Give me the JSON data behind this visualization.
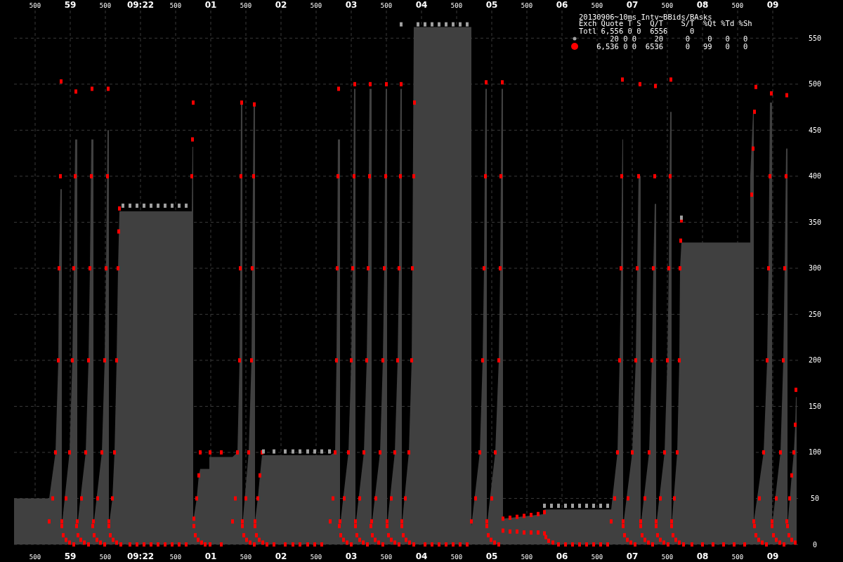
{
  "chart_data": {
    "type": "area",
    "title": "20130906~10ms Intv~BBids/BAsks",
    "annotations": [
      "Exch Quote T S  Q/T    S/T  %Qt %Td %Sh",
      "Totl 6,556 0 0  6556     0",
      "       20 0 0    20     0    0   0   0",
      "    6,536 0 0  6536     0   99   0   0"
    ],
    "xlim": [
      "2013-09-06T09:21:58.20",
      "2013-09-06T09:22:09.40"
    ],
    "xticks": [
      {
        "value": "2013-09-06T09:21:58.50",
        "label": "500"
      },
      {
        "value": "2013-09-06T09:21:59.00",
        "label": "59"
      },
      {
        "value": "2013-09-06T09:21:59.50",
        "label": "500"
      },
      {
        "value": "2013-09-06T09:22:00.00",
        "label": "09:22"
      },
      {
        "value": "2013-09-06T09:22:00.50",
        "label": "500"
      },
      {
        "value": "2013-09-06T09:22:01.00",
        "label": "01"
      },
      {
        "value": "2013-09-06T09:22:01.50",
        "label": "500"
      },
      {
        "value": "2013-09-06T09:22:02.00",
        "label": "02"
      },
      {
        "value": "2013-09-06T09:22:02.50",
        "label": "500"
      },
      {
        "value": "2013-09-06T09:22:03.00",
        "label": "03"
      },
      {
        "value": "2013-09-06T09:22:03.50",
        "label": "500"
      },
      {
        "value": "2013-09-06T09:22:04.00",
        "label": "04"
      },
      {
        "value": "2013-09-06T09:22:04.50",
        "label": "500"
      },
      {
        "value": "2013-09-06T09:22:05.00",
        "label": "05"
      },
      {
        "value": "2013-09-06T09:22:05.50",
        "label": "500"
      },
      {
        "value": "2013-09-06T09:22:06.00",
        "label": "06"
      },
      {
        "value": "2013-09-06T09:22:06.50",
        "label": "500"
      },
      {
        "value": "2013-09-06T09:22:07.00",
        "label": "07"
      },
      {
        "value": "2013-09-06T09:22:07.50",
        "label": "500"
      },
      {
        "value": "2013-09-06T09:22:08.00",
        "label": "08"
      },
      {
        "value": "2013-09-06T09:22:08.50",
        "label": "500"
      },
      {
        "value": "2013-09-06T09:22:09.00",
        "label": "09"
      }
    ],
    "x2lim": [
      "2013-09-06T09:21:58.20",
      "2013-09-06T09:22:09.40"
    ],
    "x2ticks": [
      {
        "value": "2013-09-06T09:21:58.50",
        "label": "500"
      },
      {
        "value": "2013-09-06T09:21:59.00",
        "label": "59"
      },
      {
        "value": "2013-09-06T09:21:59.50",
        "label": "500"
      },
      {
        "value": "2013-09-06T09:22:00.00",
        "label": "09:22"
      },
      {
        "value": "2013-09-06T09:22:00.50",
        "label": "500"
      },
      {
        "value": "2013-09-06T09:22:01.00",
        "label": "01"
      },
      {
        "value": "2013-09-06T09:22:01.50",
        "label": "500"
      },
      {
        "value": "2013-09-06T09:22:02.00",
        "label": "02"
      },
      {
        "value": "2013-09-06T09:22:02.50",
        "label": "500"
      },
      {
        "value": "2013-09-06T09:22:03.00",
        "label": "03"
      },
      {
        "value": "2013-09-06T09:22:03.50",
        "label": "500"
      },
      {
        "value": "2013-09-06T09:22:04.00",
        "label": "04"
      },
      {
        "value": "2013-09-06T09:22:04.50",
        "label": "500"
      },
      {
        "value": "2013-09-06T09:22:05.00",
        "label": "05"
      },
      {
        "value": "2013-09-06T09:22:05.50",
        "label": "500"
      },
      {
        "value": "2013-09-06T09:22:06.00",
        "label": "06"
      },
      {
        "value": "2013-09-06T09:22:06.50",
        "label": "500"
      },
      {
        "value": "2013-09-06T09:22:07.00",
        "label": "07"
      },
      {
        "value": "2013-09-06T09:22:07.50",
        "label": "500"
      },
      {
        "value": "2013-09-06T09:22:08.00",
        "label": "08"
      },
      {
        "value": "2013-09-06T09:22:08.50",
        "label": "500"
      },
      {
        "value": "2013-09-06T09:22:09.00",
        "label": "09"
      }
    ],
    "ylim": [
      0,
      580
    ],
    "yticks": [
      0,
      50,
      100,
      150,
      200,
      250,
      300,
      350,
      400,
      450,
      500,
      550
    ],
    "grid": true,
    "series": [
      {
        "color": "#404040",
        "x": [
          "2013-09-06T09:21:58.20",
          "2013-09-06T09:21:58.70",
          "2013-09-06T09:21:58.79",
          "2013-09-06T09:21:58.83",
          "2013-09-06T09:21:58.84",
          "2013-09-06T09:21:58.86",
          "2013-09-06T09:21:58.88",
          "2013-09-06T09:21:58.88",
          "2013-09-06T09:21:58.99",
          "2013-09-06T09:21:59.03",
          "2013-09-06T09:21:59.05",
          "2013-09-06T09:21:59.07",
          "2013-09-06T09:21:59.10",
          "2013-09-06T09:21:59.10",
          "2013-09-06T09:21:59.22",
          "2013-09-06T09:21:59.26",
          "2013-09-06T09:21:59.28",
          "2013-09-06T09:21:59.30",
          "2013-09-06T09:21:59.33",
          "2013-09-06T09:21:59.33",
          "2013-09-06T09:21:59.45",
          "2013-09-06T09:21:59.49",
          "2013-09-06T09:21:59.51",
          "2013-09-06T09:21:59.53",
          "2013-09-06T09:21:59.55",
          "2013-09-06T09:21:59.55",
          "2013-09-06T09:21:59.60",
          "2013-09-06T09:21:59.63",
          "2013-09-06T09:21:59.66",
          "2013-09-06T09:21:59.68",
          "2013-09-06T09:21:59.70",
          "2013-09-06T09:22:00.73",
          "2013-09-06T09:22:00.74",
          "2013-09-06T09:22:00.75",
          "2013-09-06T09:22:00.75",
          "2013-09-06T09:22:00.80",
          "2013-09-06T09:22:00.83",
          "2013-09-06T09:22:00.85",
          "2013-09-06T09:22:00.98",
          "2013-09-06T09:22:00.98",
          "2013-09-06T09:22:01.31",
          "2013-09-06T09:22:01.38",
          "2013-09-06T09:22:01.41",
          "2013-09-06T09:22:01.42",
          "2013-09-06T09:22:01.43",
          "2013-09-06T09:22:01.45",
          "2013-09-06T09:22:01.45",
          "2013-09-06T09:22:01.54",
          "2013-09-06T09:22:01.58",
          "2013-09-06T09:22:01.59",
          "2013-09-06T09:22:01.61",
          "2013-09-06T09:22:01.63",
          "2013-09-06T09:22:01.63",
          "2013-09-06T09:22:01.67",
          "2013-09-06T09:22:01.70",
          "2013-09-06T09:22:01.73",
          "2013-09-06T09:22:02.70",
          "2013-09-06T09:22:02.77",
          "2013-09-06T09:22:02.79",
          "2013-09-06T09:22:02.80",
          "2013-09-06T09:22:02.81",
          "2013-09-06T09:22:02.84",
          "2013-09-06T09:22:02.84",
          "2013-09-06T09:22:02.96",
          "2013-09-06T09:22:03.00",
          "2013-09-06T09:22:03.02",
          "2013-09-06T09:22:03.04",
          "2013-09-06T09:22:03.06",
          "2013-09-06T09:22:03.06",
          "2013-09-06T09:22:03.18",
          "2013-09-06T09:22:03.22",
          "2013-09-06T09:22:03.24",
          "2013-09-06T09:22:03.26",
          "2013-09-06T09:22:03.29",
          "2013-09-06T09:22:03.29",
          "2013-09-06T09:22:03.41",
          "2013-09-06T09:22:03.45",
          "2013-09-06T09:22:03.47",
          "2013-09-06T09:22:03.49",
          "2013-09-06T09:22:03.51",
          "2013-09-06T09:22:03.51",
          "2013-09-06T09:22:03.62",
          "2013-09-06T09:22:03.66",
          "2013-09-06T09:22:03.68",
          "2013-09-06T09:22:03.70",
          "2013-09-06T09:22:03.72",
          "2013-09-06T09:22:03.72",
          "2013-09-06T09:22:03.82",
          "2013-09-06T09:22:03.86",
          "2013-09-06T09:22:03.87",
          "2013-09-06T09:22:03.89",
          "2013-09-06T09:22:04.71",
          "2013-09-06T09:22:04.71",
          "2013-09-06T09:22:04.83",
          "2013-09-06T09:22:04.87",
          "2013-09-06T09:22:04.89",
          "2013-09-06T09:22:04.91",
          "2013-09-06T09:22:04.93",
          "2013-09-06T09:22:04.93",
          "2013-09-06T09:22:05.05",
          "2013-09-06T09:22:05.10",
          "2013-09-06T09:22:05.12",
          "2013-09-06T09:22:05.14",
          "2013-09-06T09:22:05.16",
          "2013-09-06T09:22:05.16",
          "2013-09-06T09:22:05.75",
          "2013-09-06T09:22:05.75",
          "2013-09-06T09:22:06.70",
          "2013-09-06T09:22:06.79",
          "2013-09-06T09:22:06.82",
          "2013-09-06T09:22:06.84",
          "2013-09-06T09:22:06.86",
          "2013-09-06T09:22:06.87",
          "2013-09-06T09:22:06.87",
          "2013-09-06T09:22:07.00",
          "2013-09-06T09:22:07.05",
          "2013-09-06T09:22:07.07",
          "2013-09-06T09:22:07.09",
          "2013-09-06T09:22:07.12",
          "2013-09-06T09:22:07.12",
          "2013-09-06T09:22:07.24",
          "2013-09-06T09:22:07.28",
          "2013-09-06T09:22:07.30",
          "2013-09-06T09:22:07.32",
          "2013-09-06T09:22:07.34",
          "2013-09-06T09:22:07.34",
          "2013-09-06T09:22:07.46",
          "2013-09-06T09:22:07.50",
          "2013-09-06T09:22:07.52",
          "2013-09-06T09:22:07.54",
          "2013-09-06T09:22:07.56",
          "2013-09-06T09:22:07.56",
          "2013-09-06T09:22:07.64",
          "2013-09-06T09:22:07.67",
          "2013-09-06T09:22:07.68",
          "2013-09-06T09:22:07.70",
          "2013-09-06T09:22:08.68",
          "2013-09-06T09:22:08.68",
          "2013-09-06T09:22:08.72",
          "2013-09-06T09:22:08.73",
          "2013-09-06T09:22:08.73",
          "2013-09-06T09:22:08.87",
          "2013-09-06T09:22:08.92",
          "2013-09-06T09:22:08.94",
          "2013-09-06T09:22:08.96",
          "2013-09-06T09:22:08.99",
          "2013-09-06T09:22:08.99",
          "2013-09-06T09:22:09.11",
          "2013-09-06T09:22:09.15",
          "2013-09-06T09:22:09.17",
          "2013-09-06T09:22:09.19",
          "2013-09-06T09:22:09.21",
          "2013-09-06T09:22:09.21",
          "2013-09-06T09:22:09.27",
          "2013-09-06T09:22:09.30",
          "2013-09-06T09:22:09.32",
          "2013-09-06T09:22:09.33",
          "2013-09-06T09:22:09.34",
          "2013-09-06T09:22:09.34"
        ],
        "values": [
          50,
          50,
          100,
          200,
          300,
          386,
          386,
          20,
          100,
          200,
          300,
          440,
          440,
          20,
          100,
          200,
          300,
          440,
          440,
          20,
          100,
          200,
          300,
          450,
          450,
          20,
          50,
          100,
          200,
          300,
          362,
          362,
          432,
          432,
          25,
          50,
          75,
          82,
          82,
          95,
          95,
          100,
          200,
          300,
          478,
          478,
          20,
          100,
          200,
          300,
          478,
          478,
          25,
          50,
          75,
          97,
          97,
          100,
          200,
          300,
          440,
          440,
          20,
          100,
          200,
          300,
          495,
          495,
          20,
          100,
          200,
          300,
          495,
          495,
          20,
          100,
          200,
          300,
          495,
          495,
          20,
          100,
          200,
          300,
          495,
          495,
          20,
          100,
          200,
          300,
          562,
          562,
          20,
          100,
          200,
          300,
          495,
          495,
          20,
          100,
          200,
          300,
          495,
          495,
          28,
          33,
          38,
          38,
          100,
          200,
          300,
          440,
          440,
          20,
          100,
          200,
          300,
          400,
          400,
          20,
          100,
          200,
          300,
          370,
          370,
          20,
          100,
          200,
          300,
          470,
          470,
          20,
          100,
          200,
          300,
          328,
          328,
          400,
          470,
          470,
          25,
          100,
          200,
          300,
          480,
          480,
          20,
          100,
          200,
          300,
          430,
          430,
          20,
          75,
          100,
          130,
          160,
          160,
          0
        ]
      },
      {
        "type": "scatter",
        "color": "#ff0000",
        "marker": "square",
        "x": [
          "2013-09-06T09:21:58.70",
          "2013-09-06T09:21:58.75",
          "2013-09-06T09:21:58.79",
          "2013-09-06T09:21:58.83",
          "2013-09-06T09:21:58.84",
          "2013-09-06T09:21:58.86",
          "2013-09-06T09:21:58.87",
          "2013-09-06T09:21:58.88",
          "2013-09-06T09:21:58.90",
          "2013-09-06T09:21:58.94",
          "2013-09-06T09:21:58.99",
          "2013-09-06T09:21:59.05",
          "2013-09-06T09:21:58.88",
          "2013-09-06T09:21:58.94",
          "2013-09-06T09:21:58.99",
          "2013-09-06T09:21:59.03",
          "2013-09-06T09:21:59.05",
          "2013-09-06T09:21:59.07",
          "2013-09-06T09:21:59.08",
          "2013-09-06T09:21:59.09",
          "2013-09-06T09:21:59.11",
          "2013-09-06T09:21:59.15",
          "2013-09-06T09:21:59.20",
          "2013-09-06T09:21:59.26",
          "2013-09-06T09:21:59.10",
          "2013-09-06T09:21:59.16",
          "2013-09-06T09:21:59.22",
          "2013-09-06T09:21:59.26",
          "2013-09-06T09:21:59.28",
          "2013-09-06T09:21:59.30",
          "2013-09-06T09:21:59.31",
          "2013-09-06T09:21:59.32",
          "2013-09-06T09:21:59.34",
          "2013-09-06T09:21:59.38",
          "2013-09-06T09:21:59.43",
          "2013-09-06T09:21:59.49",
          "2013-09-06T09:21:59.33",
          "2013-09-06T09:21:59.39",
          "2013-09-06T09:21:59.45",
          "2013-09-06T09:21:59.49",
          "2013-09-06T09:21:59.51",
          "2013-09-06T09:21:59.53",
          "2013-09-06T09:21:59.54",
          "2013-09-06T09:21:59.55",
          "2013-09-06T09:21:59.57",
          "2013-09-06T09:21:59.61",
          "2013-09-06T09:21:59.66",
          "2013-09-06T09:21:59.72",
          "2013-09-06T09:21:59.55",
          "2013-09-06T09:21:59.60",
          "2013-09-06T09:21:59.63",
          "2013-09-06T09:21:59.66",
          "2013-09-06T09:21:59.68",
          "2013-09-06T09:21:59.69",
          "2013-09-06T09:21:59.70",
          "2013-09-06T09:21:59.85",
          "2013-09-06T09:21:59.95",
          "2013-09-06T09:22:00.05",
          "2013-09-06T09:22:00.15",
          "2013-09-06T09:22:00.25",
          "2013-09-06T09:22:00.35",
          "2013-09-06T09:22:00.45",
          "2013-09-06T09:22:00.55",
          "2013-09-06T09:22:00.65",
          "2013-09-06T09:22:00.73",
          "2013-09-06T09:22:00.74",
          "2013-09-06T09:22:00.75",
          "2013-09-06T09:22:00.76",
          "2013-09-06T09:22:00.80",
          "2013-09-06T09:22:00.83",
          "2013-09-06T09:22:00.85",
          "2013-09-06T09:22:00.76",
          "2013-09-06T09:22:00.78",
          "2013-09-06T09:22:00.82",
          "2013-09-06T09:22:00.87",
          "2013-09-06T09:22:00.92",
          "2013-09-06T09:22:00.99",
          "2013-09-06T09:22:01.15",
          "2013-09-06T09:22:00.99",
          "2013-09-06T09:22:01.15",
          "2013-09-06T09:22:01.31",
          "2013-09-06T09:22:01.35",
          "2013-09-06T09:22:01.38",
          "2013-09-06T09:22:01.41",
          "2013-09-06T09:22:01.42",
          "2013-09-06T09:22:01.43",
          "2013-09-06T09:22:01.44",
          "2013-09-06T09:22:01.45",
          "2013-09-06T09:22:01.47",
          "2013-09-06T09:22:01.51",
          "2013-09-06T09:22:01.56",
          "2013-09-06T09:22:01.62",
          "2013-09-06T09:22:01.45",
          "2013-09-06T09:22:01.50",
          "2013-09-06T09:22:01.54",
          "2013-09-06T09:22:01.58",
          "2013-09-06T09:22:01.59",
          "2013-09-06T09:22:01.61",
          "2013-09-06T09:22:01.62",
          "2013-09-06T09:22:01.63",
          "2013-09-06T09:22:01.65",
          "2013-09-06T09:22:01.69",
          "2013-09-06T09:22:01.74",
          "2013-09-06T09:22:01.80",
          "2013-09-06T09:22:01.63",
          "2013-09-06T09:22:01.67",
          "2013-09-06T09:22:01.70",
          "2013-09-06T09:22:01.73",
          "2013-09-06T09:22:01.90",
          "2013-09-06T09:22:02.06",
          "2013-09-06T09:22:02.17",
          "2013-09-06T09:22:02.27",
          "2013-09-06T09:22:02.38",
          "2013-09-06T09:22:02.48",
          "2013-09-06T09:22:02.58",
          "2013-09-06T09:22:02.70",
          "2013-09-06T09:22:02.74",
          "2013-09-06T09:22:02.77",
          "2013-09-06T09:22:02.79",
          "2013-09-06T09:22:02.80",
          "2013-09-06T09:22:02.81",
          "2013-09-06T09:22:02.82",
          "2013-09-06T09:22:02.83",
          "2013-09-06T09:22:02.85",
          "2013-09-06T09:22:02.89",
          "2013-09-06T09:22:02.94",
          "2013-09-06T09:22:03.00",
          "2013-09-06T09:22:02.84",
          "2013-09-06T09:22:02.90",
          "2013-09-06T09:22:02.96",
          "2013-09-06T09:22:03.00",
          "2013-09-06T09:22:03.02",
          "2013-09-06T09:22:03.04",
          "2013-09-06T09:22:03.05",
          "2013-09-06T09:22:03.06",
          "2013-09-06T09:22:03.08",
          "2013-09-06T09:22:03.12",
          "2013-09-06T09:22:03.17",
          "2013-09-06T09:22:03.23",
          "2013-09-06T09:22:03.06",
          "2013-09-06T09:22:03.12",
          "2013-09-06T09:22:03.18",
          "2013-09-06T09:22:03.22",
          "2013-09-06T09:22:03.24",
          "2013-09-06T09:22:03.26",
          "2013-09-06T09:22:03.27",
          "2013-09-06T09:22:03.28",
          "2013-09-06T09:22:03.30",
          "2013-09-06T09:22:03.34",
          "2013-09-06T09:22:03.39",
          "2013-09-06T09:22:03.45",
          "2013-09-06T09:22:03.29",
          "2013-09-06T09:22:03.35",
          "2013-09-06T09:22:03.41",
          "2013-09-06T09:22:03.45",
          "2013-09-06T09:22:03.47",
          "2013-09-06T09:22:03.49",
          "2013-09-06T09:22:03.50",
          "2013-09-06T09:22:03.51",
          "2013-09-06T09:22:03.53",
          "2013-09-06T09:22:03.57",
          "2013-09-06T09:22:03.62",
          "2013-09-06T09:22:03.68",
          "2013-09-06T09:22:03.51",
          "2013-09-06T09:22:03.57",
          "2013-09-06T09:22:03.62",
          "2013-09-06T09:22:03.66",
          "2013-09-06T09:22:03.68",
          "2013-09-06T09:22:03.70",
          "2013-09-06T09:22:03.71",
          "2013-09-06T09:22:03.72",
          "2013-09-06T09:22:03.74",
          "2013-09-06T09:22:03.78",
          "2013-09-06T09:22:03.83",
          "2013-09-06T09:22:03.89",
          "2013-09-06T09:22:03.72",
          "2013-09-06T09:22:03.77",
          "2013-09-06T09:22:03.82",
          "2013-09-06T09:22:03.86",
          "2013-09-06T09:22:03.87",
          "2013-09-06T09:22:03.89",
          "2013-09-06T09:22:03.90",
          "2013-09-06T09:22:04.05",
          "2013-09-06T09:22:04.15",
          "2013-09-06T09:22:04.25",
          "2013-09-06T09:22:04.35",
          "2013-09-06T09:22:04.45",
          "2013-09-06T09:22:04.55",
          "2013-09-06T09:22:04.65",
          "2013-09-06T09:22:04.71",
          "2013-09-06T09:22:04.77",
          "2013-09-06T09:22:04.83",
          "2013-09-06T09:22:04.87",
          "2013-09-06T09:22:04.89",
          "2013-09-06T09:22:04.91",
          "2013-09-06T09:22:04.92",
          "2013-09-06T09:22:04.93",
          "2013-09-06T09:22:04.95",
          "2013-09-06T09:22:04.99",
          "2013-09-06T09:22:05.04",
          "2013-09-06T09:22:05.10",
          "2013-09-06T09:22:04.93",
          "2013-09-06T09:22:05.00",
          "2013-09-06T09:22:05.05",
          "2013-09-06T09:22:05.10",
          "2013-09-06T09:22:05.12",
          "2013-09-06T09:22:05.13",
          "2013-09-06T09:22:05.15",
          "2013-09-06T09:22:05.16",
          "2013-09-06T09:22:05.26",
          "2013-09-06T09:22:05.36",
          "2013-09-06T09:22:05.46",
          "2013-09-06T09:22:05.56",
          "2013-09-06T09:22:05.66",
          "2013-09-06T09:22:05.75",
          "2013-09-06T09:22:05.16",
          "2013-09-06T09:22:05.26",
          "2013-09-06T09:22:05.36",
          "2013-09-06T09:22:05.46",
          "2013-09-06T09:22:05.56",
          "2013-09-06T09:22:05.66",
          "2013-09-06T09:22:05.75",
          "2013-09-06T09:22:05.77",
          "2013-09-06T09:22:05.81",
          "2013-09-06T09:22:05.87",
          "2013-09-06T09:22:05.95",
          "2013-09-06T09:22:06.05",
          "2013-09-06T09:22:06.15",
          "2013-09-06T09:22:06.25",
          "2013-09-06T09:22:06.35",
          "2013-09-06T09:22:06.45",
          "2013-09-06T09:22:06.55",
          "2013-09-06T09:22:06.65",
          "2013-09-06T09:22:06.70",
          "2013-09-06T09:22:06.75",
          "2013-09-06T09:22:06.79",
          "2013-09-06T09:22:06.82",
          "2013-09-06T09:22:06.84",
          "2013-09-06T09:22:06.85",
          "2013-09-06T09:22:06.86",
          "2013-09-06T09:22:06.87",
          "2013-09-06T09:22:06.89",
          "2013-09-06T09:22:06.93",
          "2013-09-06T09:22:06.98",
          "2013-09-06T09:22:07.04",
          "2013-09-06T09:22:06.87",
          "2013-09-06T09:22:06.94",
          "2013-09-06T09:22:07.00",
          "2013-09-06T09:22:07.05",
          "2013-09-06T09:22:07.07",
          "2013-09-06T09:22:07.09",
          "2013-09-06T09:22:07.11",
          "2013-09-06T09:22:07.12",
          "2013-09-06T09:22:07.14",
          "2013-09-06T09:22:07.18",
          "2013-09-06T09:22:07.23",
          "2013-09-06T09:22:07.29",
          "2013-09-06T09:22:07.12",
          "2013-09-06T09:22:07.18",
          "2013-09-06T09:22:07.24",
          "2013-09-06T09:22:07.28",
          "2013-09-06T09:22:07.30",
          "2013-09-06T09:22:07.32",
          "2013-09-06T09:22:07.33",
          "2013-09-06T09:22:07.34",
          "2013-09-06T09:22:07.36",
          "2013-09-06T09:22:07.40",
          "2013-09-06T09:22:07.45",
          "2013-09-06T09:22:07.51",
          "2013-09-06T09:22:07.34",
          "2013-09-06T09:22:07.40",
          "2013-09-06T09:22:07.46",
          "2013-09-06T09:22:07.50",
          "2013-09-06T09:22:07.52",
          "2013-09-06T09:22:07.54",
          "2013-09-06T09:22:07.55",
          "2013-09-06T09:22:07.56",
          "2013-09-06T09:22:07.58",
          "2013-09-06T09:22:07.62",
          "2013-09-06T09:22:07.67",
          "2013-09-06T09:22:07.73",
          "2013-09-06T09:22:07.56",
          "2013-09-06T09:22:07.60",
          "2013-09-06T09:22:07.64",
          "2013-09-06T09:22:07.67",
          "2013-09-06T09:22:07.68",
          "2013-09-06T09:22:07.69",
          "2013-09-06T09:22:07.70",
          "2013-09-06T09:22:07.85",
          "2013-09-06T09:22:08.00",
          "2013-09-06T09:22:08.15",
          "2013-09-06T09:22:08.30",
          "2013-09-06T09:22:08.45",
          "2013-09-06T09:22:08.60",
          "2013-09-06T09:22:08.70",
          "2013-09-06T09:22:08.72",
          "2013-09-06T09:22:08.74",
          "2013-09-06T09:22:08.76",
          "2013-09-06T09:22:08.73",
          "2013-09-06T09:22:08.81",
          "2013-09-06T09:22:08.87",
          "2013-09-06T09:22:08.92",
          "2013-09-06T09:22:08.94",
          "2013-09-06T09:22:08.96",
          "2013-09-06T09:22:08.98",
          "2013-09-06T09:22:08.74",
          "2013-09-06T09:22:08.76",
          "2013-09-06T09:22:08.80",
          "2013-09-06T09:22:08.85",
          "2013-09-06T09:22:08.91",
          "2013-09-06T09:22:08.99",
          "2013-09-06T09:22:09.01",
          "2013-09-06T09:22:09.05",
          "2013-09-06T09:22:09.10",
          "2013-09-06T09:22:09.16",
          "2013-09-06T09:22:08.99",
          "2013-09-06T09:22:09.05",
          "2013-09-06T09:22:09.11",
          "2013-09-06T09:22:09.15",
          "2013-09-06T09:22:09.17",
          "2013-09-06T09:22:09.19",
          "2013-09-06T09:22:09.20",
          "2013-09-06T09:22:09.21",
          "2013-09-06T09:22:09.23",
          "2013-09-06T09:22:09.27",
          "2013-09-06T09:22:09.32",
          "2013-09-06T09:22:09.20",
          "2013-09-06T09:22:09.24",
          "2013-09-06T09:22:09.27",
          "2013-09-06T09:22:09.30",
          "2013-09-06T09:22:09.32",
          "2013-09-06T09:22:09.33"
        ],
        "values": [
          25,
          50,
          100,
          200,
          300,
          400,
          503,
          20,
          10,
          5,
          2,
          0,
          25,
          50,
          100,
          200,
          300,
          400,
          492,
          20,
          10,
          5,
          2,
          0,
          25,
          50,
          100,
          200,
          300,
          400,
          495,
          20,
          10,
          5,
          2,
          0,
          25,
          50,
          100,
          200,
          300,
          400,
          495,
          20,
          10,
          5,
          2,
          0,
          25,
          50,
          100,
          200,
          300,
          340,
          365,
          0,
          0,
          0,
          0,
          0,
          0,
          0,
          0,
          0,
          400,
          440,
          480,
          28,
          50,
          75,
          100,
          20,
          10,
          5,
          2,
          0,
          100,
          100,
          0,
          0,
          25,
          50,
          100,
          200,
          300,
          400,
          480,
          20,
          10,
          5,
          2,
          0,
          25,
          50,
          100,
          200,
          300,
          400,
          478,
          20,
          10,
          5,
          2,
          0,
          25,
          50,
          75,
          100,
          0,
          0,
          0,
          0,
          0,
          0,
          0,
          25,
          50,
          100,
          200,
          300,
          400,
          495,
          20,
          10,
          5,
          2,
          0,
          25,
          50,
          100,
          200,
          300,
          400,
          500,
          20,
          10,
          5,
          2,
          0,
          25,
          50,
          100,
          200,
          300,
          400,
          500,
          20,
          10,
          5,
          2,
          0,
          25,
          50,
          100,
          200,
          300,
          400,
          500,
          20,
          10,
          5,
          2,
          0,
          25,
          50,
          100,
          200,
          300,
          400,
          500,
          20,
          10,
          5,
          2,
          0,
          25,
          50,
          100,
          200,
          300,
          400,
          480,
          0,
          0,
          0,
          0,
          0,
          0,
          0,
          25,
          50,
          100,
          200,
          300,
          400,
          502,
          20,
          10,
          5,
          2,
          0,
          25,
          50,
          100,
          200,
          300,
          400,
          502,
          28,
          29,
          30,
          31,
          32,
          33,
          35,
          15,
          14,
          14,
          13,
          13,
          13,
          12,
          8,
          4,
          2,
          0,
          0,
          0,
          0,
          0,
          0,
          0,
          0,
          25,
          50,
          100,
          200,
          300,
          400,
          505,
          20,
          10,
          5,
          2,
          0,
          25,
          50,
          100,
          200,
          300,
          400,
          500,
          20,
          10,
          5,
          2,
          0,
          25,
          50,
          100,
          200,
          300,
          400,
          498,
          20,
          10,
          5,
          2,
          0,
          25,
          50,
          100,
          200,
          300,
          400,
          505,
          20,
          10,
          5,
          2,
          0,
          25,
          50,
          100,
          200,
          300,
          330,
          352,
          0,
          0,
          0,
          0,
          0,
          0,
          380,
          430,
          470,
          497,
          25,
          50,
          100,
          200,
          300,
          400,
          490,
          20,
          10,
          5,
          2,
          0,
          20,
          10,
          5,
          2,
          0,
          25,
          50,
          100,
          200,
          300,
          400,
          488,
          20,
          10,
          5,
          2,
          25,
          50,
          75,
          100,
          130,
          168
        ]
      },
      {
        "type": "scatter",
        "color": "#a0a0a0",
        "marker": "square",
        "x": [
          "2013-09-06T09:21:59.75",
          "2013-09-06T09:21:59.85",
          "2013-09-06T09:21:59.95",
          "2013-09-06T09:22:00.05",
          "2013-09-06T09:22:00.15",
          "2013-09-06T09:22:00.25",
          "2013-09-06T09:22:00.35",
          "2013-09-06T09:22:00.45",
          "2013-09-06T09:22:00.55",
          "2013-09-06T09:22:00.65",
          "2013-09-06T09:22:01.75",
          "2013-09-06T09:22:01.90",
          "2013-09-06T09:22:02.06",
          "2013-09-06T09:22:02.17",
          "2013-09-06T09:22:02.27",
          "2013-09-06T09:22:02.38",
          "2013-09-06T09:22:02.48",
          "2013-09-06T09:22:02.58",
          "2013-09-06T09:22:02.69",
          "2013-09-06T09:22:03.71",
          "2013-09-06T09:22:03.95",
          "2013-09-06T09:22:04.05",
          "2013-09-06T09:22:04.15",
          "2013-09-06T09:22:04.25",
          "2013-09-06T09:22:04.35",
          "2013-09-06T09:22:04.45",
          "2013-09-06T09:22:04.55",
          "2013-09-06T09:22:04.65",
          "2013-09-06T09:22:05.75",
          "2013-09-06T09:22:05.85",
          "2013-09-06T09:22:05.95",
          "2013-09-06T09:22:06.05",
          "2013-09-06T09:22:06.15",
          "2013-09-06T09:22:06.25",
          "2013-09-06T09:22:06.35",
          "2013-09-06T09:22:06.45",
          "2013-09-06T09:22:06.55",
          "2013-09-06T09:22:06.65",
          "2013-09-06T09:22:07.70"
        ],
        "values": [
          368,
          368,
          368,
          368,
          368,
          368,
          368,
          368,
          368,
          368,
          101,
          101,
          101,
          101,
          101,
          101,
          101,
          101,
          101,
          565,
          565,
          565,
          565,
          565,
          565,
          565,
          565,
          565,
          42,
          42,
          42,
          42,
          42,
          42,
          42,
          42,
          42,
          42,
          355
        ]
      }
    ]
  }
}
